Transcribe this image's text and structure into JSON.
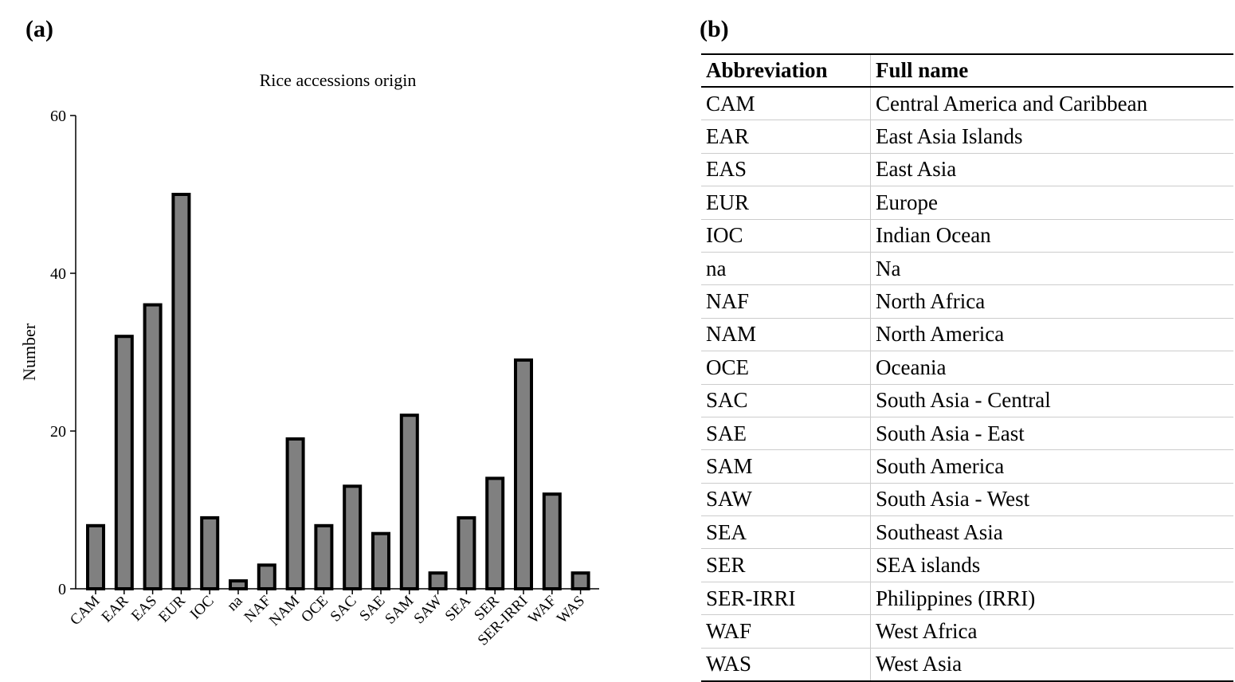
{
  "panel_a": "(a)",
  "panel_b": "(b)",
  "chart_data": {
    "type": "bar",
    "title": "Rice accessions origin",
    "y_label": "Number",
    "categories": [
      "CAM",
      "EAR",
      "EAS",
      "EUR",
      "IOC",
      "na",
      "NAF",
      "NAM",
      "OCE",
      "SAC",
      "SAE",
      "SAM",
      "SAW",
      "SEA",
      "SER",
      "SER-IRRI",
      "WAF",
      "WAS"
    ],
    "values": [
      8,
      32,
      36,
      50,
      9,
      1,
      3,
      19,
      8,
      13,
      7,
      22,
      2,
      9,
      14,
      29,
      12,
      2
    ],
    "color": "#808080",
    "ylim": [
      0,
      60
    ],
    "yticks": [
      0,
      20,
      40,
      60
    ],
    "grid": false
  },
  "table": {
    "header": [
      "Abbreviation",
      "Full name"
    ],
    "rows": [
      [
        "CAM",
        "Central America and Caribbean"
      ],
      [
        "EAR",
        "East Asia Islands"
      ],
      [
        "EAS",
        "East Asia"
      ],
      [
        "EUR",
        "Europe"
      ],
      [
        "IOC",
        "Indian Ocean"
      ],
      [
        "na",
        "Na"
      ],
      [
        "NAF",
        "North Africa"
      ],
      [
        "NAM",
        "North America"
      ],
      [
        "OCE",
        "Oceania"
      ],
      [
        "SAC",
        "South Asia - Central"
      ],
      [
        "SAE",
        "South Asia - East"
      ],
      [
        "SAM",
        "South America"
      ],
      [
        "SAW",
        "South Asia - West"
      ],
      [
        "SEA",
        "Southeast Asia"
      ],
      [
        "SER",
        "SEA islands"
      ],
      [
        "SER-IRRI",
        "Philippines (IRRI)"
      ],
      [
        "WAF",
        "West Africa"
      ],
      [
        "WAS",
        "West Asia"
      ]
    ]
  }
}
